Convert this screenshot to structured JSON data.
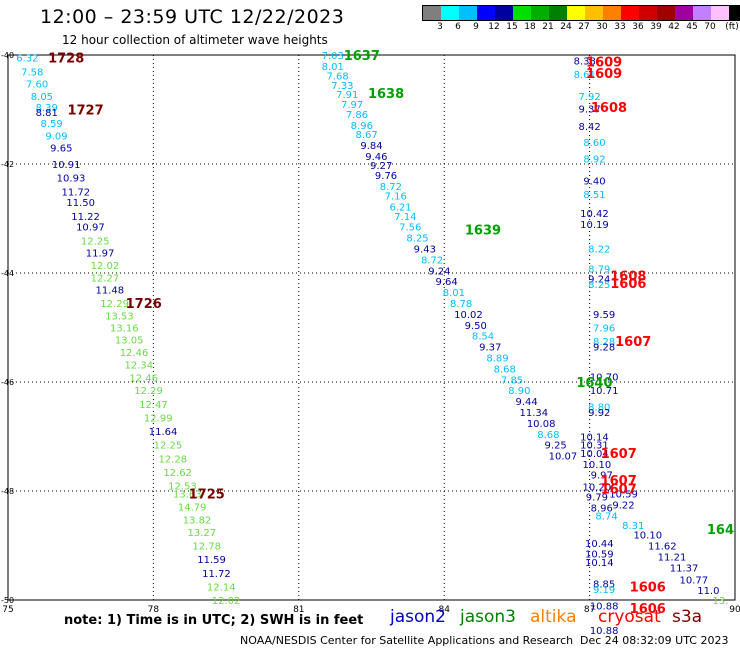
{
  "header": {
    "title": "12:00 – 23:59 UTC 12/22/2023",
    "subtitle": "12 hour collection of altimeter wave heights"
  },
  "legend": {
    "colors": [
      "#7f7f7f",
      "#00ffff",
      "#00bfff",
      "#0000ff",
      "#0000a0",
      "#00e000",
      "#00b000",
      "#008000",
      "#ffff00",
      "#ffc000",
      "#ff8000",
      "#ff0000",
      "#d00000",
      "#a00000",
      "#a000a0",
      "#c080ff",
      "#ffc0ff",
      "#000000"
    ],
    "labels": [
      "3",
      "6",
      "9",
      "12",
      "15",
      "18",
      "21",
      "24",
      "27",
      "30",
      "33",
      "36",
      "39",
      "42",
      "45",
      "70",
      "(ft)"
    ]
  },
  "chart_data": {
    "type": "scatter",
    "xlim": [
      75,
      90
    ],
    "ylim": [
      -50,
      -40
    ],
    "x_ticks": [
      "75",
      "78",
      "81",
      "84",
      "87",
      "90"
    ],
    "y_ticks": [
      "-40",
      "-42",
      "-44",
      "-46",
      "-48",
      "-50"
    ],
    "grid": true,
    "color_key": {
      "c": "#00bfff",
      "b": "#0000a0",
      "g": "#66dd44",
      "dr": "#7a0000",
      "r": "#ff0000",
      "dg": "#00a000"
    },
    "time_labels": [
      {
        "x": 76.2,
        "y": -40.05,
        "t": "1728",
        "c": "dr"
      },
      {
        "x": 76.6,
        "y": -41.0,
        "t": "1727",
        "c": "dr"
      },
      {
        "x": 77.8,
        "y": -44.55,
        "t": "1726",
        "c": "dr"
      },
      {
        "x": 79.1,
        "y": -48.05,
        "t": "1725",
        "c": "dr"
      },
      {
        "x": 82.3,
        "y": -40.0,
        "t": "1637",
        "c": "dg"
      },
      {
        "x": 82.8,
        "y": -40.7,
        "t": "1638",
        "c": "dg"
      },
      {
        "x": 84.8,
        "y": -43.2,
        "t": "1639",
        "c": "dg"
      },
      {
        "x": 87.1,
        "y": -46.0,
        "t": "1640",
        "c": "dg"
      },
      {
        "x": 89.7,
        "y": -48.7,
        "t": "164",
        "c": "dg"
      },
      {
        "x": 87.3,
        "y": -40.12,
        "t": "1609",
        "c": "r"
      },
      {
        "x": 87.3,
        "y": -40.33,
        "t": "1609",
        "c": "r"
      },
      {
        "x": 87.4,
        "y": -40.95,
        "t": "1608",
        "c": "r"
      },
      {
        "x": 87.8,
        "y": -44.05,
        "t": "1608",
        "c": "r"
      },
      {
        "x": 87.8,
        "y": -44.18,
        "t": "1606",
        "c": "r"
      },
      {
        "x": 87.9,
        "y": -45.25,
        "t": "1607",
        "c": "r"
      },
      {
        "x": 87.6,
        "y": -47.3,
        "t": "1607",
        "c": "r"
      },
      {
        "x": 87.6,
        "y": -47.8,
        "t": "1607",
        "c": "r"
      },
      {
        "x": 87.6,
        "y": -47.95,
        "t": "1607",
        "c": "r"
      },
      {
        "x": 88.2,
        "y": -49.75,
        "t": "1606",
        "c": "r"
      },
      {
        "x": 88.2,
        "y": -50.15,
        "t": "1606",
        "c": "r"
      }
    ],
    "points": [
      {
        "x": 75.4,
        "y": -40.05,
        "v": "6.32",
        "c": "c"
      },
      {
        "x": 75.5,
        "y": -40.3,
        "v": "7.58",
        "c": "c"
      },
      {
        "x": 75.6,
        "y": -40.52,
        "v": "7.60",
        "c": "c"
      },
      {
        "x": 75.7,
        "y": -40.75,
        "v": "8.05",
        "c": "c"
      },
      {
        "x": 75.8,
        "y": -40.95,
        "v": "8.39",
        "c": "c"
      },
      {
        "x": 75.8,
        "y": -41.05,
        "v": "8.81",
        "c": "b"
      },
      {
        "x": 75.9,
        "y": -41.25,
        "v": "8.59",
        "c": "c"
      },
      {
        "x": 76.0,
        "y": -41.48,
        "v": "9.09",
        "c": "c"
      },
      {
        "x": 76.1,
        "y": -41.7,
        "v": "9.65",
        "c": "b"
      },
      {
        "x": 76.2,
        "y": -42.0,
        "v": "10.91",
        "c": "b"
      },
      {
        "x": 76.3,
        "y": -42.25,
        "v": "10.93",
        "c": "b"
      },
      {
        "x": 76.4,
        "y": -42.5,
        "v": "11.72",
        "c": "b"
      },
      {
        "x": 76.5,
        "y": -42.7,
        "v": "11.50",
        "c": "b"
      },
      {
        "x": 76.6,
        "y": -42.95,
        "v": "11.22",
        "c": "b"
      },
      {
        "x": 76.7,
        "y": -43.15,
        "v": "10.97",
        "c": "b"
      },
      {
        "x": 76.8,
        "y": -43.4,
        "v": "12.25",
        "c": "g"
      },
      {
        "x": 76.9,
        "y": -43.62,
        "v": "11.97",
        "c": "b"
      },
      {
        "x": 77.0,
        "y": -43.85,
        "v": "12.02",
        "c": "g"
      },
      {
        "x": 77.0,
        "y": -44.08,
        "v": "12.27",
        "c": "g"
      },
      {
        "x": 77.1,
        "y": -44.3,
        "v": "11.48",
        "c": "b"
      },
      {
        "x": 77.2,
        "y": -44.55,
        "v": "12.29",
        "c": "g"
      },
      {
        "x": 77.3,
        "y": -44.78,
        "v": "13.53",
        "c": "g"
      },
      {
        "x": 77.4,
        "y": -45.0,
        "v": "13.16",
        "c": "g"
      },
      {
        "x": 77.5,
        "y": -45.22,
        "v": "13.05",
        "c": "g"
      },
      {
        "x": 77.6,
        "y": -45.45,
        "v": "12.46",
        "c": "g"
      },
      {
        "x": 77.7,
        "y": -45.68,
        "v": "12.34",
        "c": "g"
      },
      {
        "x": 77.8,
        "y": -45.92,
        "v": "12.46",
        "c": "g"
      },
      {
        "x": 77.9,
        "y": -46.15,
        "v": "12.29",
        "c": "g"
      },
      {
        "x": 78.0,
        "y": -46.4,
        "v": "12.47",
        "c": "g"
      },
      {
        "x": 78.1,
        "y": -46.65,
        "v": "12.99",
        "c": "g"
      },
      {
        "x": 78.2,
        "y": -46.9,
        "v": "11.64",
        "c": "b"
      },
      {
        "x": 78.3,
        "y": -47.15,
        "v": "12.25",
        "c": "g"
      },
      {
        "x": 78.4,
        "y": -47.4,
        "v": "12.28",
        "c": "g"
      },
      {
        "x": 78.5,
        "y": -47.65,
        "v": "12.62",
        "c": "g"
      },
      {
        "x": 78.6,
        "y": -47.9,
        "v": "12.53",
        "c": "g"
      },
      {
        "x": 78.7,
        "y": -48.05,
        "v": "13.63",
        "c": "g"
      },
      {
        "x": 78.8,
        "y": -48.28,
        "v": "14.79",
        "c": "g"
      },
      {
        "x": 78.9,
        "y": -48.52,
        "v": "13.82",
        "c": "g"
      },
      {
        "x": 79.0,
        "y": -48.75,
        "v": "13.27",
        "c": "g"
      },
      {
        "x": 79.1,
        "y": -49.0,
        "v": "12.78",
        "c": "g"
      },
      {
        "x": 79.2,
        "y": -49.25,
        "v": "11.59",
        "c": "b"
      },
      {
        "x": 79.3,
        "y": -49.5,
        "v": "11.72",
        "c": "b"
      },
      {
        "x": 79.4,
        "y": -49.75,
        "v": "12.14",
        "c": "g"
      },
      {
        "x": 79.5,
        "y": -50.0,
        "v": "12.02",
        "c": "g"
      },
      {
        "x": 81.7,
        "y": -40.0,
        "v": "7.03",
        "c": "c"
      },
      {
        "x": 81.7,
        "y": -40.2,
        "v": "8.01",
        "c": "c"
      },
      {
        "x": 81.8,
        "y": -40.38,
        "v": "7.68",
        "c": "c"
      },
      {
        "x": 81.9,
        "y": -40.55,
        "v": "7.33",
        "c": "c"
      },
      {
        "x": 82.0,
        "y": -40.72,
        "v": "7.91",
        "c": "c"
      },
      {
        "x": 82.1,
        "y": -40.9,
        "v": "7.97",
        "c": "c"
      },
      {
        "x": 82.2,
        "y": -41.08,
        "v": "7.86",
        "c": "c"
      },
      {
        "x": 82.3,
        "y": -41.28,
        "v": "8.96",
        "c": "c"
      },
      {
        "x": 82.4,
        "y": -41.45,
        "v": "8.67",
        "c": "c"
      },
      {
        "x": 82.5,
        "y": -41.65,
        "v": "9.84",
        "c": "b"
      },
      {
        "x": 82.6,
        "y": -41.85,
        "v": "9.46",
        "c": "b"
      },
      {
        "x": 82.7,
        "y": -42.02,
        "v": "9.27",
        "c": "b"
      },
      {
        "x": 82.8,
        "y": -42.2,
        "v": "9.76",
        "c": "b"
      },
      {
        "x": 82.9,
        "y": -42.4,
        "v": "8.72",
        "c": "c"
      },
      {
        "x": 83.0,
        "y": -42.58,
        "v": "7.16",
        "c": "c"
      },
      {
        "x": 83.1,
        "y": -42.78,
        "v": "6.21",
        "c": "c"
      },
      {
        "x": 83.2,
        "y": -42.95,
        "v": "7.14",
        "c": "c"
      },
      {
        "x": 83.3,
        "y": -43.15,
        "v": "7.56",
        "c": "c"
      },
      {
        "x": 83.45,
        "y": -43.35,
        "v": "8.25",
        "c": "c"
      },
      {
        "x": 83.6,
        "y": -43.55,
        "v": "9.43",
        "c": "b"
      },
      {
        "x": 83.75,
        "y": -43.75,
        "v": "8.72",
        "c": "c"
      },
      {
        "x": 83.9,
        "y": -43.95,
        "v": "9.24",
        "c": "b"
      },
      {
        "x": 84.05,
        "y": -44.15,
        "v": "9.64",
        "c": "b"
      },
      {
        "x": 84.2,
        "y": -44.35,
        "v": "8.01",
        "c": "c"
      },
      {
        "x": 84.35,
        "y": -44.55,
        "v": "8.78",
        "c": "c"
      },
      {
        "x": 84.5,
        "y": -44.75,
        "v": "10.02",
        "c": "b"
      },
      {
        "x": 84.65,
        "y": -44.95,
        "v": "9.50",
        "c": "b"
      },
      {
        "x": 84.8,
        "y": -45.15,
        "v": "8.54",
        "c": "c"
      },
      {
        "x": 84.95,
        "y": -45.35,
        "v": "9.37",
        "c": "b"
      },
      {
        "x": 85.1,
        "y": -45.55,
        "v": "8.89",
        "c": "c"
      },
      {
        "x": 85.25,
        "y": -45.75,
        "v": "8.68",
        "c": "c"
      },
      {
        "x": 85.4,
        "y": -45.95,
        "v": "7.85",
        "c": "c"
      },
      {
        "x": 85.55,
        "y": -46.15,
        "v": "8.90",
        "c": "c"
      },
      {
        "x": 85.7,
        "y": -46.35,
        "v": "9.44",
        "c": "b"
      },
      {
        "x": 85.85,
        "y": -46.55,
        "v": "11.34",
        "c": "b"
      },
      {
        "x": 86.0,
        "y": -46.75,
        "v": "10.08",
        "c": "b"
      },
      {
        "x": 86.15,
        "y": -46.95,
        "v": "8.68",
        "c": "c"
      },
      {
        "x": 86.3,
        "y": -47.15,
        "v": "9.25",
        "c": "b"
      },
      {
        "x": 86.45,
        "y": -47.35,
        "v": "10.07",
        "c": "b"
      },
      {
        "x": 86.9,
        "y": -40.1,
        "v": "8.38",
        "c": "b"
      },
      {
        "x": 86.9,
        "y": -40.35,
        "v": "8.61",
        "c": "c"
      },
      {
        "x": 87.0,
        "y": -40.75,
        "v": "7.92",
        "c": "c"
      },
      {
        "x": 87.0,
        "y": -40.98,
        "v": "9.37",
        "c": "b"
      },
      {
        "x": 87.0,
        "y": -41.3,
        "v": "8.42",
        "c": "b"
      },
      {
        "x": 87.1,
        "y": -41.6,
        "v": "8.60",
        "c": "c"
      },
      {
        "x": 87.1,
        "y": -41.9,
        "v": "8.92",
        "c": "c"
      },
      {
        "x": 87.1,
        "y": -42.3,
        "v": "9.40",
        "c": "b"
      },
      {
        "x": 87.1,
        "y": -42.55,
        "v": "8.51",
        "c": "c"
      },
      {
        "x": 87.1,
        "y": -42.9,
        "v": "10.42",
        "c": "b"
      },
      {
        "x": 87.1,
        "y": -43.1,
        "v": "10.19",
        "c": "b"
      },
      {
        "x": 87.2,
        "y": -43.55,
        "v": "8.22",
        "c": "c"
      },
      {
        "x": 87.2,
        "y": -43.92,
        "v": "8.79",
        "c": "c"
      },
      {
        "x": 87.2,
        "y": -44.1,
        "v": "9.24",
        "c": "b"
      },
      {
        "x": 87.2,
        "y": -44.2,
        "v": "8.25",
        "c": "c"
      },
      {
        "x": 87.3,
        "y": -44.75,
        "v": "9.59",
        "c": "b"
      },
      {
        "x": 87.3,
        "y": -45.0,
        "v": "7.96",
        "c": "c"
      },
      {
        "x": 87.3,
        "y": -45.25,
        "v": "8.28",
        "c": "c"
      },
      {
        "x": 87.3,
        "y": -45.35,
        "v": "9.28",
        "c": "b"
      },
      {
        "x": 87.3,
        "y": -45.9,
        "v": "10.70",
        "c": "b"
      },
      {
        "x": 87.3,
        "y": -46.15,
        "v": "10.71",
        "c": "b"
      },
      {
        "x": 87.2,
        "y": -46.45,
        "v": "8.80",
        "c": "c"
      },
      {
        "x": 87.2,
        "y": -46.55,
        "v": "9.92",
        "c": "b"
      },
      {
        "x": 87.1,
        "y": -47.0,
        "v": "10.14",
        "c": "b"
      },
      {
        "x": 87.1,
        "y": -47.15,
        "v": "10.31",
        "c": "b"
      },
      {
        "x": 87.1,
        "y": -47.3,
        "v": "10.04",
        "c": "b"
      },
      {
        "x": 87.15,
        "y": -47.5,
        "v": "10.10",
        "c": "b"
      },
      {
        "x": 87.25,
        "y": -47.7,
        "v": "9.97",
        "c": "b"
      },
      {
        "x": 87.15,
        "y": -47.92,
        "v": "10.20",
        "c": "b"
      },
      {
        "x": 87.15,
        "y": -48.1,
        "v": "9.79",
        "c": "b"
      },
      {
        "x": 87.25,
        "y": -48.3,
        "v": "8.96",
        "c": "b"
      },
      {
        "x": 87.35,
        "y": -48.45,
        "v": "8.74",
        "c": "c"
      },
      {
        "x": 87.7,
        "y": -48.05,
        "v": "10.59",
        "c": "b"
      },
      {
        "x": 87.7,
        "y": -48.25,
        "v": "9.22",
        "c": "b"
      },
      {
        "x": 87.9,
        "y": -48.62,
        "v": "8.31",
        "c": "c"
      },
      {
        "x": 88.2,
        "y": -48.8,
        "v": "10.10",
        "c": "b"
      },
      {
        "x": 88.5,
        "y": -49.0,
        "v": "11.62",
        "c": "b"
      },
      {
        "x": 88.7,
        "y": -49.2,
        "v": "11.21",
        "c": "b"
      },
      {
        "x": 88.95,
        "y": -49.4,
        "v": "11.37",
        "c": "b"
      },
      {
        "x": 89.15,
        "y": -49.62,
        "v": "10.77",
        "c": "b"
      },
      {
        "x": 89.45,
        "y": -49.82,
        "v": "11.0",
        "c": "b"
      },
      {
        "x": 89.7,
        "y": -50.0,
        "v": "13.",
        "c": "g"
      },
      {
        "x": 87.2,
        "y": -48.95,
        "v": "10.44",
        "c": "b"
      },
      {
        "x": 87.2,
        "y": -49.15,
        "v": "10.59",
        "c": "b"
      },
      {
        "x": 87.2,
        "y": -49.3,
        "v": "10.14",
        "c": "b"
      },
      {
        "x": 87.3,
        "y": -49.7,
        "v": "8.85",
        "c": "b"
      },
      {
        "x": 87.3,
        "y": -49.8,
        "v": "9.19",
        "c": "c"
      },
      {
        "x": 87.3,
        "y": -50.1,
        "v": "10.88",
        "c": "b"
      },
      {
        "x": 87.3,
        "y": -50.55,
        "v": "10.88",
        "c": "b"
      }
    ]
  },
  "footer": {
    "note": "note: 1) Time is in UTC; 2) SWH is in feet",
    "missions": [
      {
        "name": "jason2",
        "color": "#0000c0"
      },
      {
        "name": "jason3",
        "color": "#008000"
      },
      {
        "name": "altika",
        "color": "#ff8000"
      },
      {
        "name": "cryosat",
        "color": "#ff0000"
      },
      {
        "name": "s3a",
        "color": "#800000"
      }
    ],
    "credits": "NOAA/NESDIS Center for Satellite Applications and Research",
    "date": "Dec 24 08:32:09 UTC 2023"
  }
}
